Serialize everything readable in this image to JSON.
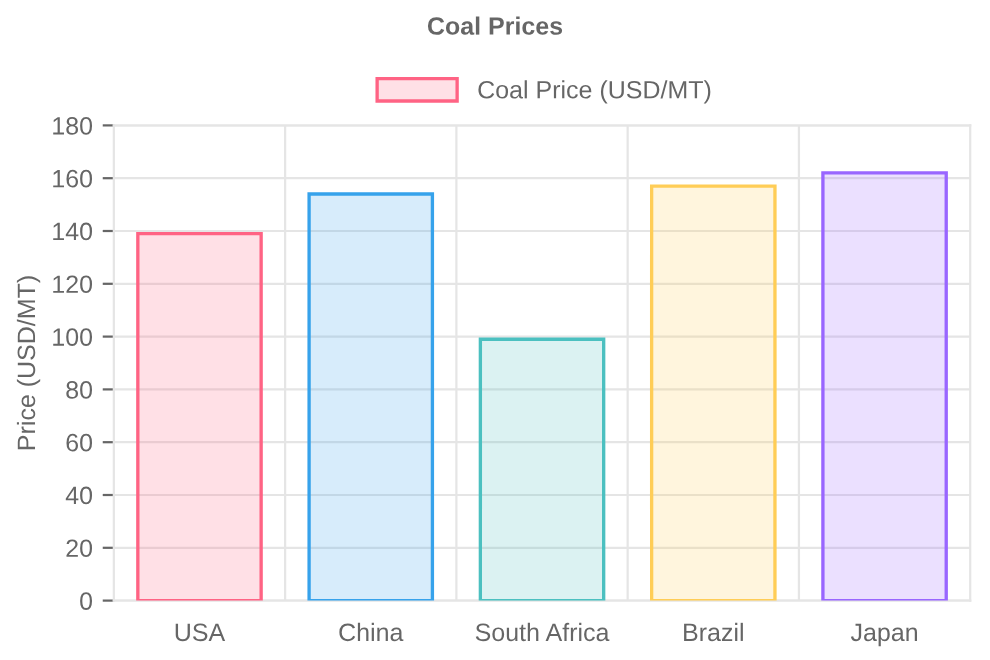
{
  "chart_data": {
    "type": "bar",
    "title": "Coal Prices",
    "ylabel": "Price (USD/MT)",
    "categories": [
      "USA",
      "China",
      "South Africa",
      "Brazil",
      "Japan"
    ],
    "series": [
      {
        "name": "Coal Price (USD/MT)",
        "values": [
          139,
          154,
          99,
          157,
          162
        ],
        "colors": [
          "#ff6384",
          "#36a2eb",
          "#4bc0c0",
          "#ffcd56",
          "#9966ff"
        ]
      }
    ],
    "ylim": [
      0,
      180
    ],
    "yticks": [
      0,
      20,
      40,
      60,
      80,
      100,
      120,
      140,
      160,
      180
    ],
    "grid": true,
    "legend": "top"
  }
}
